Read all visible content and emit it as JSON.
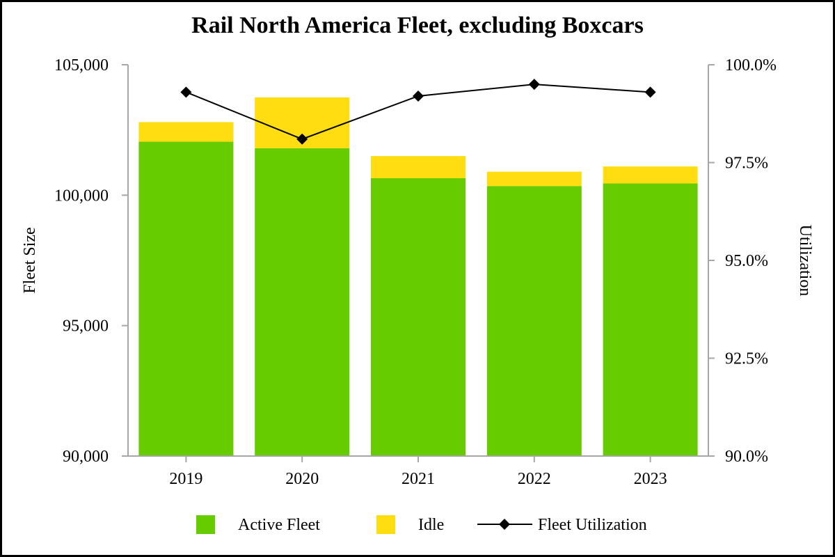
{
  "chart_data": {
    "type": "bar",
    "title": "Rail North America Fleet, excluding Boxcars",
    "categories": [
      "2019",
      "2020",
      "2021",
      "2022",
      "2023"
    ],
    "series": [
      {
        "name": "Active Fleet",
        "kind": "bar",
        "stack": "fleet",
        "axis": "left",
        "color": "#66cc00",
        "values": [
          102050,
          101800,
          100650,
          100350,
          100450
        ]
      },
      {
        "name": "Idle",
        "kind": "bar",
        "stack": "fleet",
        "axis": "left",
        "color": "#ffdd11",
        "values": [
          750,
          1950,
          850,
          550,
          650
        ]
      },
      {
        "name": "Fleet Utilization",
        "kind": "line",
        "axis": "right",
        "color": "#000000",
        "marker": "diamond",
        "values": [
          99.3,
          98.1,
          99.2,
          99.5,
          99.3
        ]
      }
    ],
    "ylabel": "Fleet Size",
    "y2label": "Utilization",
    "ylim": [
      90000,
      105000
    ],
    "y2lim": [
      90.0,
      100.0
    ],
    "yticks": [
      "90,000",
      "95,000",
      "100,000",
      "105,000"
    ],
    "yticks_values": [
      90000,
      95000,
      100000,
      105000
    ],
    "y2ticks": [
      "90.0%",
      "92.5%",
      "95.0%",
      "97.5%",
      "100.0%"
    ],
    "y2ticks_values": [
      90.0,
      92.5,
      95.0,
      97.5,
      100.0
    ],
    "grid": false,
    "legend": "bottom",
    "legend_items": [
      {
        "label": "Active Fleet",
        "color": "#66cc00",
        "kind": "box"
      },
      {
        "label": "Idle",
        "color": "#ffdd11",
        "kind": "box"
      },
      {
        "label": "Fleet Utilization",
        "color": "#000000",
        "kind": "line-diamond"
      }
    ]
  }
}
